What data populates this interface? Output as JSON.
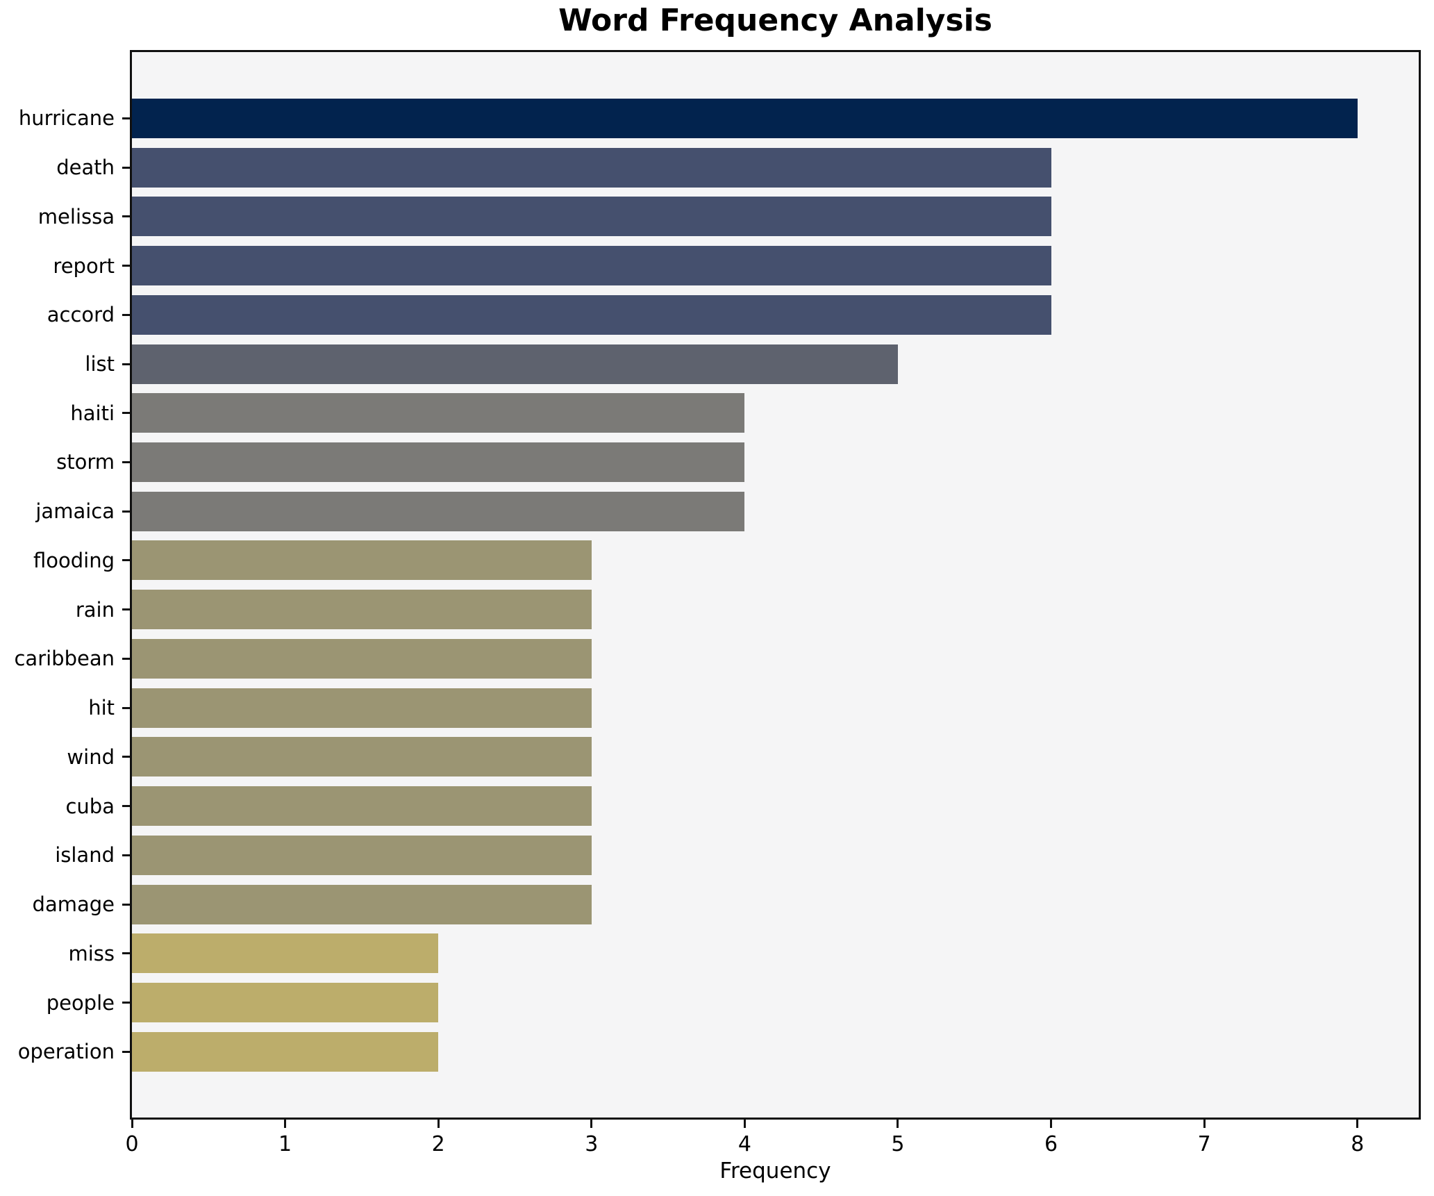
{
  "title": "Word Frequency Analysis",
  "chart_data": {
    "type": "bar",
    "orientation": "horizontal",
    "title": "Word Frequency Analysis",
    "xlabel": "Frequency",
    "ylabel": "",
    "categories": [
      "hurricane",
      "death",
      "melissa",
      "report",
      "accord",
      "list",
      "haiti",
      "storm",
      "jamaica",
      "flooding",
      "rain",
      "caribbean",
      "hit",
      "wind",
      "cuba",
      "island",
      "damage",
      "miss",
      "people",
      "operation"
    ],
    "values": [
      8,
      6,
      6,
      6,
      6,
      5,
      4,
      4,
      4,
      3,
      3,
      3,
      3,
      3,
      3,
      3,
      3,
      2,
      2,
      2
    ],
    "bar_colors": [
      "#02234e",
      "#45506e",
      "#45506e",
      "#45506e",
      "#45506e",
      "#5e626e",
      "#7b7a77",
      "#7b7a77",
      "#7b7a77",
      "#9b9573",
      "#9b9573",
      "#9b9573",
      "#9b9573",
      "#9b9573",
      "#9b9573",
      "#9b9573",
      "#9b9573",
      "#bcad6b",
      "#bcad6b",
      "#bcad6b"
    ],
    "xlim": [
      0,
      8.4
    ],
    "x_ticks": [
      0,
      1,
      2,
      3,
      4,
      5,
      6,
      7,
      8
    ],
    "grid": false,
    "legend": false,
    "plot_bg": "#f5f5f6",
    "figure_bg": "#ffffff",
    "spine_color": "#111111",
    "text_color": "#000000"
  }
}
